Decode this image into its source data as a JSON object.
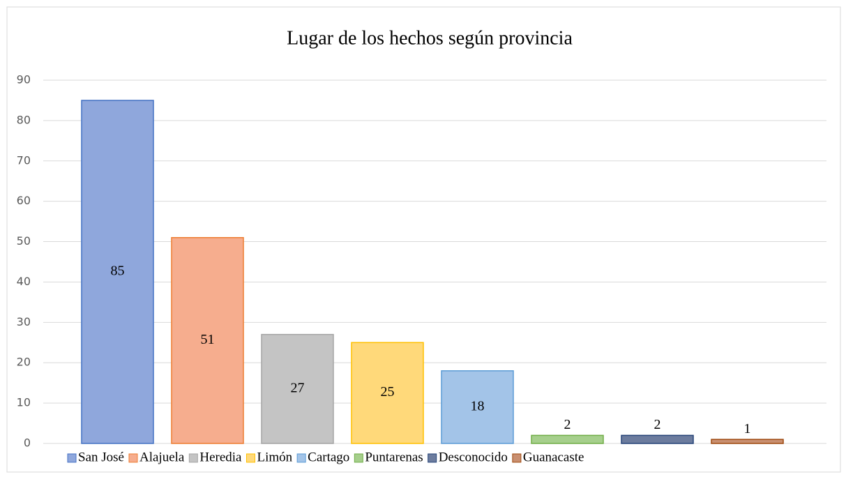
{
  "chart_data": {
    "type": "bar",
    "title": "Lugar de los hechos según provincia",
    "categories": [
      "San José",
      "Alajuela",
      "Heredia",
      "Limón",
      "Cartago",
      "Puntarenas",
      "Desconocido",
      "Guanacaste"
    ],
    "values": [
      85,
      51,
      27,
      25,
      18,
      2,
      2,
      1
    ],
    "colors": [
      "#8fa7dc",
      "#f6ad8e",
      "#c4c4c4",
      "#ffd97a",
      "#a3c4e8",
      "#a6cf8c",
      "#6c7c9e",
      "#c98f70"
    ],
    "edge_colors": [
      "#4472c4",
      "#ed7d31",
      "#a5a5a5",
      "#ffc000",
      "#5b9bd5",
      "#70ad47",
      "#264478",
      "#9e480e"
    ],
    "ylim": [
      0,
      90
    ],
    "yticks": [
      0,
      10,
      20,
      30,
      40,
      50,
      60,
      70,
      80,
      90
    ],
    "grid": true,
    "legend": "bottom"
  }
}
